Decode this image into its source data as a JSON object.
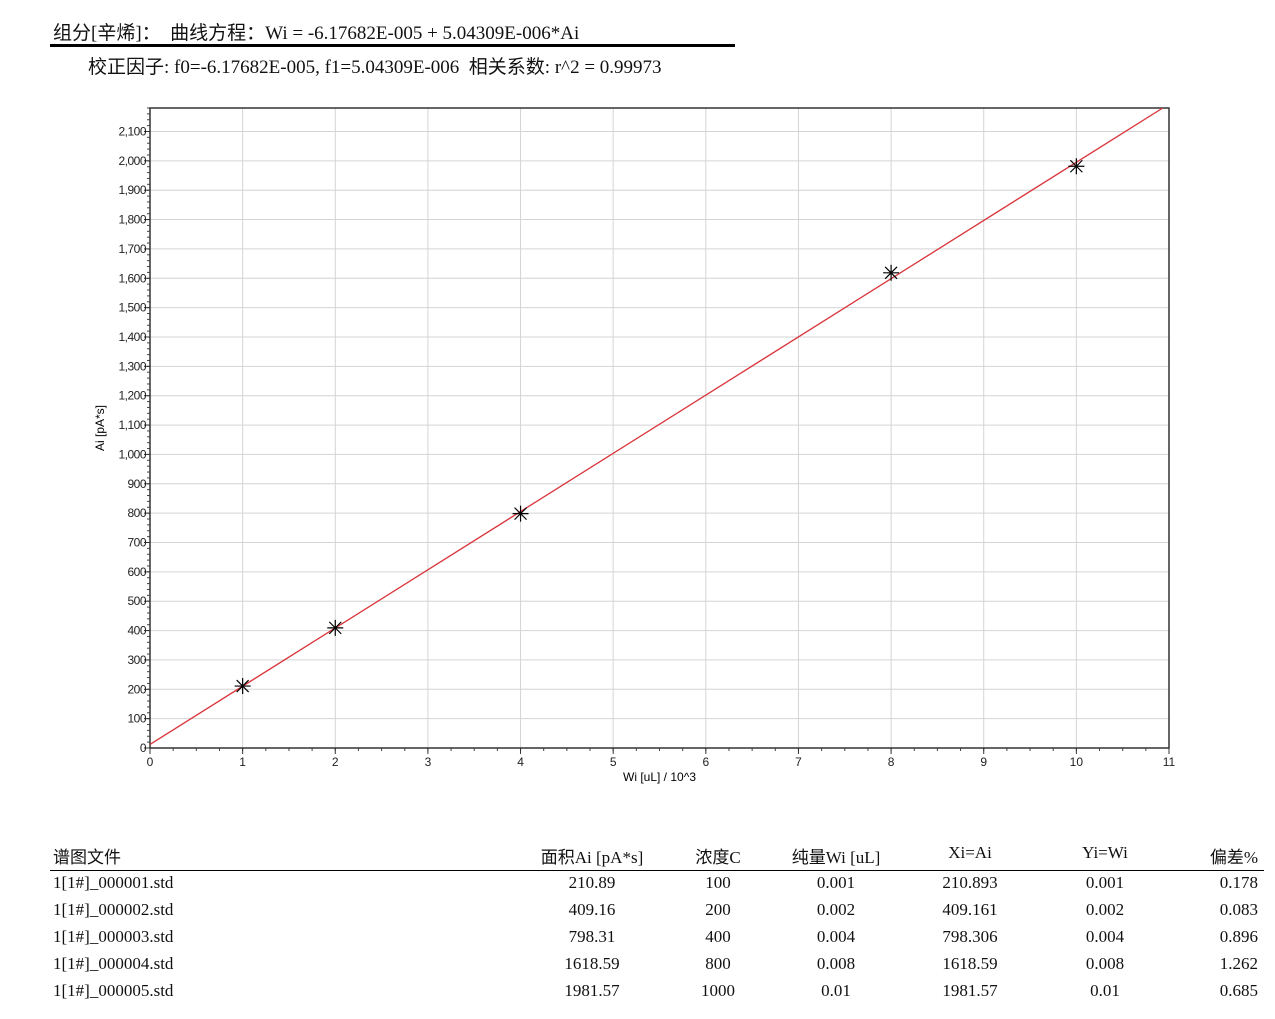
{
  "header": {
    "equation_line": "组分[辛烯]：  曲线方程：Wi = -6.17682E-005 + 5.04309E-006*Ai",
    "factors_line": "校正因子: f0=-6.17682E-005, f1=5.04309E-006  相关系数: r^2 = 0.99973"
  },
  "chart_data": {
    "type": "scatter",
    "xlabel": "Wi [uL] / 10^3",
    "ylabel": "Ai [pA*s]",
    "xlim": [
      0,
      11
    ],
    "ylim": [
      0,
      2180
    ],
    "grid": true,
    "x_ticks": [
      "0",
      "1",
      "2",
      "3",
      "4",
      "5",
      "6",
      "7",
      "8",
      "9",
      "10",
      "11"
    ],
    "y_ticks": [
      "0",
      "100",
      "200",
      "300",
      "400",
      "500",
      "600",
      "700",
      "800",
      "900",
      "1,000",
      "1,100",
      "1,200",
      "1,300",
      "1,400",
      "1,500",
      "1,600",
      "1,700",
      "1,800",
      "1,900",
      "2,000",
      "2,100"
    ],
    "points": [
      {
        "x": 1,
        "y": 210.89
      },
      {
        "x": 2,
        "y": 409.16
      },
      {
        "x": 4,
        "y": 798.31
      },
      {
        "x": 8,
        "y": 1618.59
      },
      {
        "x": 10,
        "y": 1981.57
      }
    ],
    "fit_line": {
      "intercept": 12.25,
      "slope": 198.29,
      "color": "#d9343a"
    },
    "marker": "asterisk",
    "marker_color": "#000000"
  },
  "table": {
    "headers": [
      "谱图文件",
      "面积Ai [pA*s]",
      "浓度C",
      "纯量Wi [uL]",
      "Xi=Ai",
      "Yi=Wi",
      "偏差%"
    ],
    "rows": [
      [
        "1[1#]_000001.std",
        "210.89",
        "100",
        "0.001",
        "210.893",
        "0.001",
        "0.178"
      ],
      [
        "1[1#]_000002.std",
        "409.16",
        "200",
        "0.002",
        "409.161",
        "0.002",
        "0.083"
      ],
      [
        "1[1#]_000003.std",
        "798.31",
        "400",
        "0.004",
        "798.306",
        "0.004",
        "0.896"
      ],
      [
        "1[1#]_000004.std",
        "1618.59",
        "800",
        "0.008",
        "1618.59",
        "0.008",
        "1.262"
      ],
      [
        "1[1#]_000005.std",
        "1981.57",
        "1000",
        "0.01",
        "1981.57",
        "0.01",
        "0.685"
      ]
    ]
  }
}
